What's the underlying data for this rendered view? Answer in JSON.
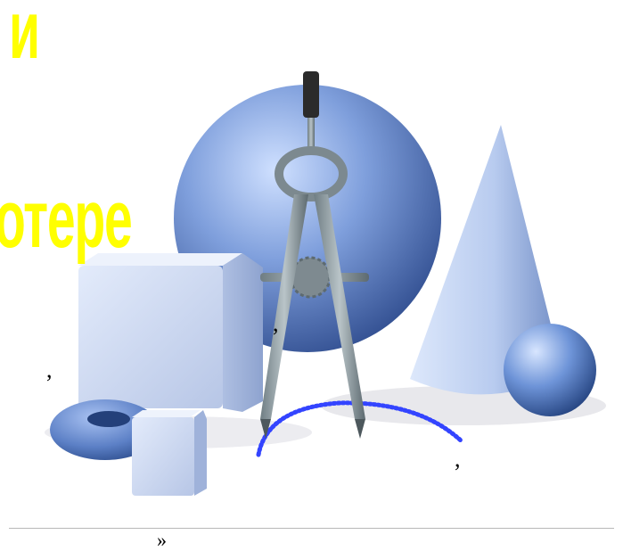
{
  "headline": {
    "line1": "и",
    "line2": "отере"
  },
  "commas": {
    "left": ",",
    "middle": ",",
    "bottom": ","
  },
  "footer": {
    "nav_glyph": "»"
  },
  "colors": {
    "headline": "#ffff00",
    "shape_blue": "#7f9fdc",
    "compass_gray": "#8c9aa0",
    "arc_dots": "#3344ff"
  }
}
